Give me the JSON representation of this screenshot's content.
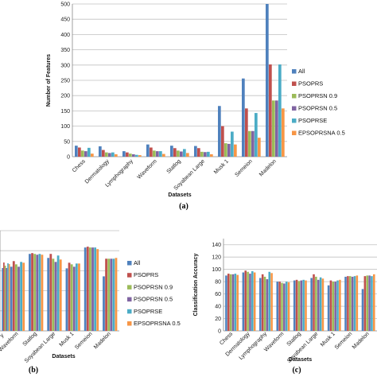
{
  "colors": {
    "All": "#4f81bd",
    "PSOPRS": "#c0504d",
    "PSOPRSN 0.9": "#9bbb59",
    "PSOPRSN 0.5": "#8064a2",
    "PSOPRSE": "#4bacc6",
    "EPSOPRSNA 0.5": "#f79646",
    "grid": "#c0c0c0",
    "axis": "#888888"
  },
  "chart_data": [
    {
      "panel": "(a)",
      "type": "bar",
      "title": "",
      "xlabel": "Datasets",
      "ylabel": "Number of Features",
      "ylim": [
        0,
        500
      ],
      "yticks": [
        0,
        50,
        100,
        150,
        200,
        250,
        300,
        350,
        400,
        450,
        500
      ],
      "grid": true,
      "legend_position": "right",
      "categories": [
        "Chess",
        "Dermatology",
        "Lymphography",
        "Waveform",
        "Statlog",
        "Soyabean Large",
        "Musk 1",
        "Semeion",
        "Madelon"
      ],
      "series": [
        {
          "name": "All",
          "values": [
            36,
            34,
            18,
            40,
            36,
            35,
            166,
            256,
            500
          ]
        },
        {
          "name": "PSOPRS",
          "values": [
            30,
            22,
            14,
            30,
            28,
            28,
            100,
            158,
            302
          ]
        },
        {
          "name": "PSOPRSN 0.9",
          "values": [
            20,
            14,
            10,
            20,
            20,
            16,
            44,
            84,
            184
          ]
        },
        {
          "name": "PSOPRSN 0.5",
          "values": [
            18,
            12,
            8,
            18,
            17,
            15,
            42,
            84,
            184
          ]
        },
        {
          "name": "PSOPRSE",
          "values": [
            29,
            14,
            6,
            18,
            25,
            16,
            82,
            143,
            302
          ]
        },
        {
          "name": "EPSOPRSNA 0.5",
          "values": [
            10,
            8,
            5,
            9,
            12,
            8,
            40,
            62,
            158
          ]
        }
      ]
    },
    {
      "panel": "(b)",
      "type": "bar",
      "title": "",
      "xlabel": "Datasets",
      "ylabel": "",
      "ylim": [
        0,
        125
      ],
      "grid": true,
      "legend_position": "right",
      "categories": [
        "Waveform",
        "Statlog",
        "Soyabean Large",
        "Musk 1",
        "Semeion",
        "Madelon"
      ],
      "visible_partial_category": "y",
      "series": [
        {
          "name": "All",
          "values": [
            80,
            96,
            91,
            78,
            104,
            68
          ]
        },
        {
          "name": "PSOPRS",
          "values": [
            87,
            97,
            96,
            85,
            105,
            90
          ]
        },
        {
          "name": "PSOPRSN 0.9",
          "values": [
            83,
            96,
            90,
            83,
            104,
            90
          ]
        },
        {
          "name": "PSOPRSN 0.5",
          "values": [
            80,
            95,
            86,
            80,
            104,
            90
          ]
        },
        {
          "name": "PSOPRSE",
          "values": [
            86,
            96,
            94,
            84,
            104,
            90
          ]
        },
        {
          "name": "EPSOPRSNA 0.5",
          "values": [
            85,
            95,
            89,
            84,
            102,
            91
          ]
        }
      ]
    },
    {
      "panel": "(c)",
      "type": "bar",
      "title": "",
      "xlabel": "Datasets",
      "ylabel": "Classification Accuracy",
      "ylim": [
        0,
        150
      ],
      "yticks": [
        0,
        20,
        40,
        60,
        80,
        100,
        120,
        140
      ],
      "grid": true,
      "categories": [
        "Chess",
        "Dermatology",
        "Lymphography",
        "Waveform",
        "Statlog",
        "Soyabean Large",
        "Musk 1",
        "Semeion",
        "Madelon"
      ],
      "series": [
        {
          "name": "All",
          "values": [
            90,
            95,
            86,
            80,
            82,
            86,
            74,
            88,
            68
          ]
        },
        {
          "name": "PSOPRS",
          "values": [
            93,
            98,
            92,
            80,
            83,
            92,
            82,
            89,
            89
          ]
        },
        {
          "name": "PSOPRSN 0.9",
          "values": [
            92,
            96,
            88,
            78,
            81,
            88,
            80,
            89,
            90
          ]
        },
        {
          "name": "PSOPRSN 0.5",
          "values": [
            92,
            93,
            84,
            77,
            82,
            83,
            80,
            88,
            90
          ]
        },
        {
          "name": "PSOPRSE",
          "values": [
            93,
            97,
            96,
            80,
            83,
            87,
            82,
            89,
            89
          ]
        },
        {
          "name": "EPSOPRSNA 0.5",
          "values": [
            91,
            95,
            94,
            79,
            82,
            85,
            83,
            90,
            92
          ]
        }
      ]
    }
  ]
}
